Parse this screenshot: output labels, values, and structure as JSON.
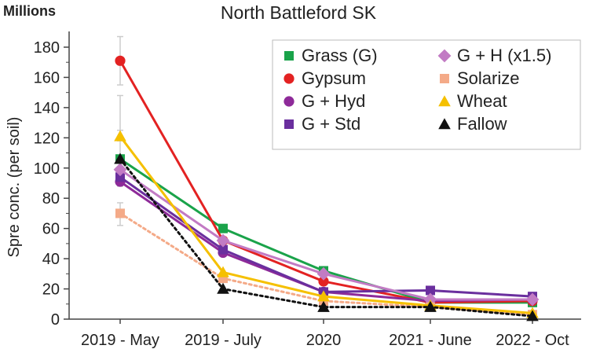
{
  "chart_data": {
    "type": "line",
    "title": "North Battleford SK",
    "units_label": "Millions",
    "ylabel": "Spre conc. (per soil)",
    "xlabel": "",
    "categories": [
      "2019 - May",
      "2019 - July",
      "2020",
      "2021 - June",
      "2022 - Oct"
    ],
    "ylim": [
      0,
      190
    ],
    "yticks": [
      0,
      20,
      40,
      60,
      80,
      100,
      120,
      140,
      160,
      180
    ],
    "grid": false,
    "legend_position": "top-right",
    "series": [
      {
        "name": "Grass (G)",
        "color": "#1aa34a",
        "marker": "square",
        "dashed": false,
        "values": [
          106,
          60,
          32,
          11,
          11
        ]
      },
      {
        "name": "Gypsum",
        "color": "#e32222",
        "marker": "circle",
        "dashed": false,
        "values": [
          171,
          52,
          25,
          11,
          12
        ]
      },
      {
        "name": "G + Hyd",
        "color": "#8e2a99",
        "marker": "circle",
        "dashed": false,
        "values": [
          91,
          44,
          18,
          12,
          13
        ]
      },
      {
        "name": "G + Std",
        "color": "#6a2f9e",
        "marker": "square",
        "dashed": false,
        "values": [
          94,
          46,
          18,
          19,
          15
        ]
      },
      {
        "name": "G + H (x1.5)",
        "color": "#c27bc4",
        "marker": "diamond",
        "dashed": false,
        "values": [
          99,
          52,
          30,
          13,
          13
        ]
      },
      {
        "name": "Solarize",
        "color": "#f4aa88",
        "marker": "square",
        "dashed": true,
        "values": [
          70,
          27,
          12,
          8,
          3
        ]
      },
      {
        "name": "Wheat",
        "color": "#f5c000",
        "marker": "triangle",
        "dashed": false,
        "values": [
          121,
          31,
          15,
          9,
          4
        ]
      },
      {
        "name": "Fallow",
        "color": "#111111",
        "marker": "triangle",
        "dashed": true,
        "values": [
          106,
          20,
          8,
          8,
          2
        ]
      }
    ],
    "error_bars": {
      "category": "2019 - May",
      "ranges": [
        [
          62,
          77
        ],
        [
          88,
          105
        ],
        [
          118,
          125
        ],
        [
          155,
          187
        ],
        [
          96,
          148
        ]
      ]
    },
    "legend_columns": [
      [
        "Grass (G)",
        "Gypsum",
        "G + Hyd",
        "G + Std"
      ],
      [
        "G + H (x1.5)",
        "Solarize",
        "Wheat",
        "Fallow"
      ]
    ]
  }
}
